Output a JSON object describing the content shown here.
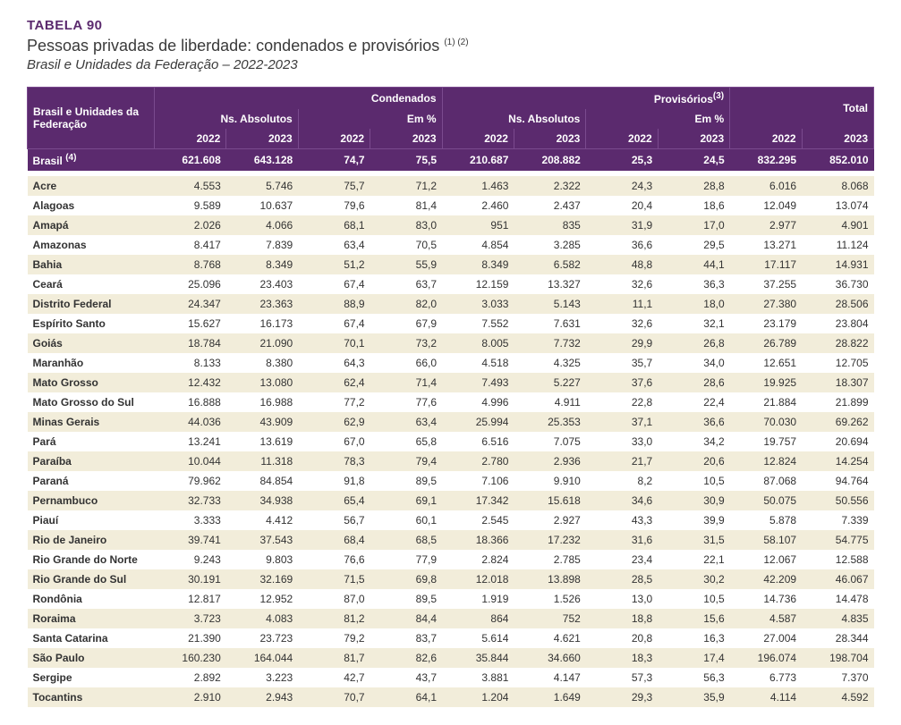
{
  "header": {
    "table_number": "TABELA 90",
    "title": "Pessoas privadas de liberdade: condenados e provisórios",
    "title_sup": "(1) (2)",
    "subtitle": "Brasil e Unidades da Federação – 2022-2023"
  },
  "columns": {
    "region_label": "Brasil e Unidades da Federação",
    "group_condenados": "Condenados",
    "group_provisorios": "Provisórios",
    "group_provisorios_sup": "(3)",
    "group_total": "Total",
    "sub_abs": "Ns. Absolutos",
    "sub_pct": "Em %",
    "y2022": "2022",
    "y2023": "2023"
  },
  "brasil": {
    "label": "Brasil",
    "label_sup": "(4)",
    "c22": "621.608",
    "c23": "643.128",
    "cp22": "74,7",
    "cp23": "75,5",
    "p22": "210.687",
    "p23": "208.882",
    "pp22": "25,3",
    "pp23": "24,5",
    "t22": "832.295",
    "t23": "852.010"
  },
  "rows": [
    {
      "label": "Acre",
      "c22": "4.553",
      "c23": "5.746",
      "cp22": "75,7",
      "cp23": "71,2",
      "p22": "1.463",
      "p23": "2.322",
      "pp22": "24,3",
      "pp23": "28,8",
      "t22": "6.016",
      "t23": "8.068"
    },
    {
      "label": "Alagoas",
      "c22": "9.589",
      "c23": "10.637",
      "cp22": "79,6",
      "cp23": "81,4",
      "p22": "2.460",
      "p23": "2.437",
      "pp22": "20,4",
      "pp23": "18,6",
      "t22": "12.049",
      "t23": "13.074"
    },
    {
      "label": "Amapá",
      "c22": "2.026",
      "c23": "4.066",
      "cp22": "68,1",
      "cp23": "83,0",
      "p22": "951",
      "p23": "835",
      "pp22": "31,9",
      "pp23": "17,0",
      "t22": "2.977",
      "t23": "4.901"
    },
    {
      "label": "Amazonas",
      "c22": "8.417",
      "c23": "7.839",
      "cp22": "63,4",
      "cp23": "70,5",
      "p22": "4.854",
      "p23": "3.285",
      "pp22": "36,6",
      "pp23": "29,5",
      "t22": "13.271",
      "t23": "11.124"
    },
    {
      "label": "Bahia",
      "c22": "8.768",
      "c23": "8.349",
      "cp22": "51,2",
      "cp23": "55,9",
      "p22": "8.349",
      "p23": "6.582",
      "pp22": "48,8",
      "pp23": "44,1",
      "t22": "17.117",
      "t23": "14.931"
    },
    {
      "label": "Ceará",
      "c22": "25.096",
      "c23": "23.403",
      "cp22": "67,4",
      "cp23": "63,7",
      "p22": "12.159",
      "p23": "13.327",
      "pp22": "32,6",
      "pp23": "36,3",
      "t22": "37.255",
      "t23": "36.730"
    },
    {
      "label": "Distrito Federal",
      "c22": "24.347",
      "c23": "23.363",
      "cp22": "88,9",
      "cp23": "82,0",
      "p22": "3.033",
      "p23": "5.143",
      "pp22": "11,1",
      "pp23": "18,0",
      "t22": "27.380",
      "t23": "28.506"
    },
    {
      "label": "Espírito Santo",
      "c22": "15.627",
      "c23": "16.173",
      "cp22": "67,4",
      "cp23": "67,9",
      "p22": "7.552",
      "p23": "7.631",
      "pp22": "32,6",
      "pp23": "32,1",
      "t22": "23.179",
      "t23": "23.804"
    },
    {
      "label": "Goiás",
      "c22": "18.784",
      "c23": "21.090",
      "cp22": "70,1",
      "cp23": "73,2",
      "p22": "8.005",
      "p23": "7.732",
      "pp22": "29,9",
      "pp23": "26,8",
      "t22": "26.789",
      "t23": "28.822"
    },
    {
      "label": "Maranhão",
      "c22": "8.133",
      "c23": "8.380",
      "cp22": "64,3",
      "cp23": "66,0",
      "p22": "4.518",
      "p23": "4.325",
      "pp22": "35,7",
      "pp23": "34,0",
      "t22": "12.651",
      "t23": "12.705"
    },
    {
      "label": "Mato Grosso",
      "c22": "12.432",
      "c23": "13.080",
      "cp22": "62,4",
      "cp23": "71,4",
      "p22": "7.493",
      "p23": "5.227",
      "pp22": "37,6",
      "pp23": "28,6",
      "t22": "19.925",
      "t23": "18.307"
    },
    {
      "label": "Mato Grosso do Sul",
      "c22": "16.888",
      "c23": "16.988",
      "cp22": "77,2",
      "cp23": "77,6",
      "p22": "4.996",
      "p23": "4.911",
      "pp22": "22,8",
      "pp23": "22,4",
      "t22": "21.884",
      "t23": "21.899"
    },
    {
      "label": "Minas Gerais",
      "c22": "44.036",
      "c23": "43.909",
      "cp22": "62,9",
      "cp23": "63,4",
      "p22": "25.994",
      "p23": "25.353",
      "pp22": "37,1",
      "pp23": "36,6",
      "t22": "70.030",
      "t23": "69.262"
    },
    {
      "label": "Pará",
      "c22": "13.241",
      "c23": "13.619",
      "cp22": "67,0",
      "cp23": "65,8",
      "p22": "6.516",
      "p23": "7.075",
      "pp22": "33,0",
      "pp23": "34,2",
      "t22": "19.757",
      "t23": "20.694"
    },
    {
      "label": "Paraíba",
      "c22": "10.044",
      "c23": "11.318",
      "cp22": "78,3",
      "cp23": "79,4",
      "p22": "2.780",
      "p23": "2.936",
      "pp22": "21,7",
      "pp23": "20,6",
      "t22": "12.824",
      "t23": "14.254"
    },
    {
      "label": "Paraná",
      "c22": "79.962",
      "c23": "84.854",
      "cp22": "91,8",
      "cp23": "89,5",
      "p22": "7.106",
      "p23": "9.910",
      "pp22": "8,2",
      "pp23": "10,5",
      "t22": "87.068",
      "t23": "94.764"
    },
    {
      "label": "Pernambuco",
      "c22": "32.733",
      "c23": "34.938",
      "cp22": "65,4",
      "cp23": "69,1",
      "p22": "17.342",
      "p23": "15.618",
      "pp22": "34,6",
      "pp23": "30,9",
      "t22": "50.075",
      "t23": "50.556"
    },
    {
      "label": "Piauí",
      "c22": "3.333",
      "c23": "4.412",
      "cp22": "56,7",
      "cp23": "60,1",
      "p22": "2.545",
      "p23": "2.927",
      "pp22": "43,3",
      "pp23": "39,9",
      "t22": "5.878",
      "t23": "7.339"
    },
    {
      "label": "Rio de Janeiro",
      "c22": "39.741",
      "c23": "37.543",
      "cp22": "68,4",
      "cp23": "68,5",
      "p22": "18.366",
      "p23": "17.232",
      "pp22": "31,6",
      "pp23": "31,5",
      "t22": "58.107",
      "t23": "54.775"
    },
    {
      "label": "Rio Grande do Norte",
      "c22": "9.243",
      "c23": "9.803",
      "cp22": "76,6",
      "cp23": "77,9",
      "p22": "2.824",
      "p23": "2.785",
      "pp22": "23,4",
      "pp23": "22,1",
      "t22": "12.067",
      "t23": "12.588"
    },
    {
      "label": "Rio Grande do Sul",
      "c22": "30.191",
      "c23": "32.169",
      "cp22": "71,5",
      "cp23": "69,8",
      "p22": "12.018",
      "p23": "13.898",
      "pp22": "28,5",
      "pp23": "30,2",
      "t22": "42.209",
      "t23": "46.067"
    },
    {
      "label": "Rondônia",
      "c22": "12.817",
      "c23": "12.952",
      "cp22": "87,0",
      "cp23": "89,5",
      "p22": "1.919",
      "p23": "1.526",
      "pp22": "13,0",
      "pp23": "10,5",
      "t22": "14.736",
      "t23": "14.478"
    },
    {
      "label": "Roraima",
      "c22": "3.723",
      "c23": "4.083",
      "cp22": "81,2",
      "cp23": "84,4",
      "p22": "864",
      "p23": "752",
      "pp22": "18,8",
      "pp23": "15,6",
      "t22": "4.587",
      "t23": "4.835"
    },
    {
      "label": "Santa Catarina",
      "c22": "21.390",
      "c23": "23.723",
      "cp22": "79,2",
      "cp23": "83,7",
      "p22": "5.614",
      "p23": "4.621",
      "pp22": "20,8",
      "pp23": "16,3",
      "t22": "27.004",
      "t23": "28.344"
    },
    {
      "label": "São Paulo",
      "c22": "160.230",
      "c23": "164.044",
      "cp22": "81,7",
      "cp23": "82,6",
      "p22": "35.844",
      "p23": "34.660",
      "pp22": "18,3",
      "pp23": "17,4",
      "t22": "196.074",
      "t23": "198.704"
    },
    {
      "label": "Sergipe",
      "c22": "2.892",
      "c23": "3.223",
      "cp22": "42,7",
      "cp23": "43,7",
      "p22": "3.881",
      "p23": "4.147",
      "pp22": "57,3",
      "pp23": "56,3",
      "t22": "6.773",
      "t23": "7.370"
    },
    {
      "label": "Tocantins",
      "c22": "2.910",
      "c23": "2.943",
      "cp22": "70,7",
      "cp23": "64,1",
      "p22": "1.204",
      "p23": "1.649",
      "pp22": "29,3",
      "pp23": "35,9",
      "t22": "4.114",
      "t23": "4.592"
    }
  ],
  "style": {
    "header_bg": "#5b2a6e",
    "header_fg": "#ffffff",
    "row_odd_bg": "#f2edda",
    "row_even_bg": "#ffffff",
    "font_size_body": 12,
    "font_size_title": 18
  }
}
